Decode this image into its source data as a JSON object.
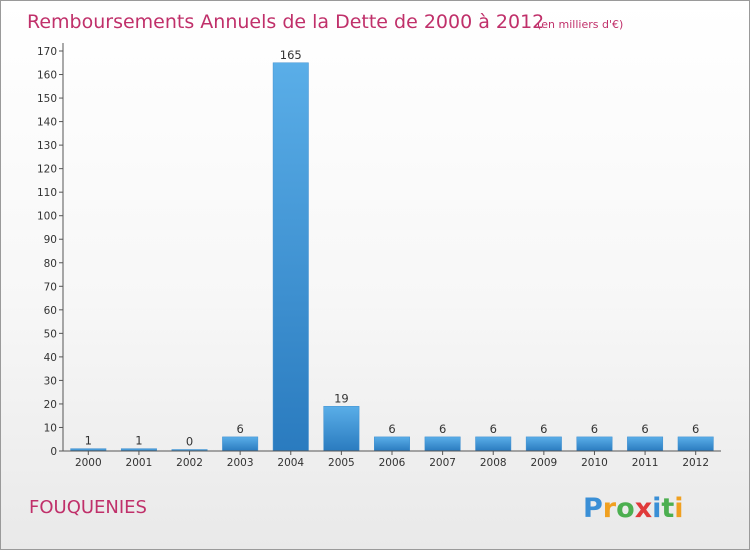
{
  "chart_data": {
    "type": "bar",
    "title": "Remboursements Annuels de la Dette de 2000 à 2012",
    "unit_note": "(en milliers d'€)",
    "categories": [
      "2000",
      "2001",
      "2002",
      "2003",
      "2004",
      "2005",
      "2006",
      "2007",
      "2008",
      "2009",
      "2010",
      "2011",
      "2012"
    ],
    "values": [
      1,
      1,
      0,
      6,
      165,
      19,
      6,
      6,
      6,
      6,
      6,
      6,
      6
    ],
    "data_labels": [
      "1",
      "1",
      "0",
      "6",
      "165",
      "19",
      "6",
      "6",
      "6",
      "6",
      "6",
      "6",
      "6"
    ],
    "ylim": [
      0,
      170
    ],
    "yticks": [
      0,
      10,
      20,
      30,
      40,
      50,
      60,
      70,
      80,
      90,
      100,
      110,
      120,
      130,
      140,
      150,
      160,
      170
    ],
    "xlabel": "",
    "ylabel": "",
    "grid": false,
    "bar_color_light": "#5aaee8",
    "bar_color_dark": "#2a7bbf"
  },
  "commune": "FOUQUENIES",
  "logo": {
    "letters": [
      "P",
      "r",
      "o",
      "x",
      "i",
      "t",
      "i"
    ],
    "colors": [
      "#3a8fd6",
      "#f0a020",
      "#4caf50",
      "#e03a3a",
      "#3a8fd6",
      "#4caf50",
      "#f0a020"
    ]
  }
}
